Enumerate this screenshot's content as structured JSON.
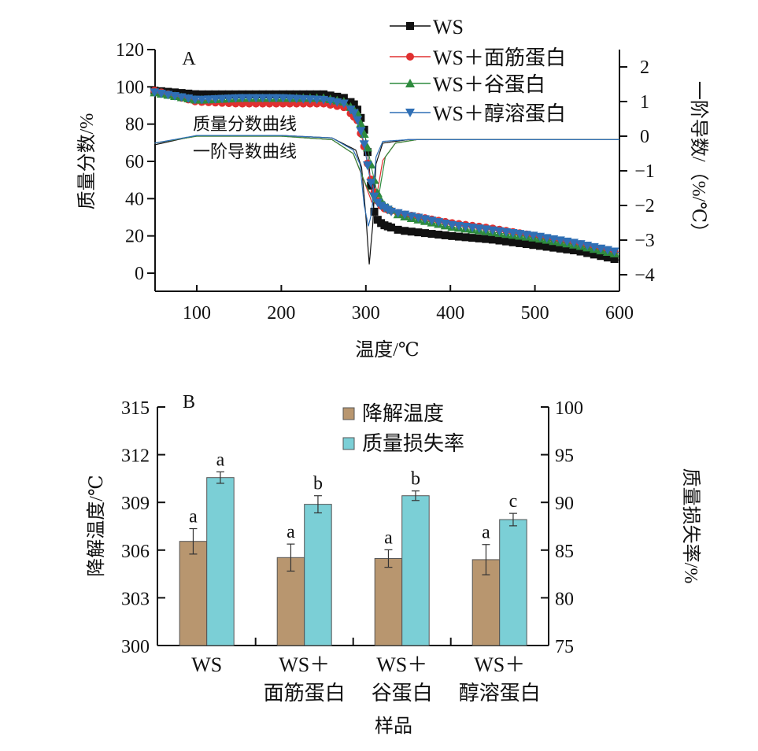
{
  "chart_data": [
    {
      "type": "line",
      "panel_label": "A",
      "xlabel": "温度/℃",
      "ylabel": "质量分数/%",
      "y2label": "一阶导数/（%/℃）",
      "xlim": [
        50,
        600
      ],
      "ylim": [
        -8,
        120
      ],
      "y2lim": [
        -4.5,
        2.5
      ],
      "xticks": [
        100,
        200,
        300,
        400,
        500,
        600
      ],
      "yticks": [
        0,
        20,
        40,
        60,
        80,
        100,
        120
      ],
      "y2ticks": [
        -4,
        -3,
        -2,
        -1,
        0,
        1,
        2
      ],
      "annotations": [
        "质量分数曲线",
        "一阶导数曲线"
      ],
      "series": [
        {
          "name": "WS",
          "color": "#111111",
          "marker": "square",
          "tg": [
            [
              50,
              98
            ],
            [
              100,
              96
            ],
            [
              150,
              96
            ],
            [
              200,
              96
            ],
            [
              250,
              96
            ],
            [
              275,
              94
            ],
            [
              288,
              90
            ],
            [
              297,
              80
            ],
            [
              303,
              62
            ],
            [
              307,
              42
            ],
            [
              311,
              30
            ],
            [
              320,
              26
            ],
            [
              340,
              23
            ],
            [
              400,
              20
            ],
            [
              450,
              18
            ],
            [
              500,
              15
            ],
            [
              550,
              12
            ],
            [
              600,
              7
            ]
          ],
          "dtg": [
            [
              50,
              -0.25
            ],
            [
              100,
              0.02
            ],
            [
              200,
              0.02
            ],
            [
              260,
              -0.05
            ],
            [
              280,
              -0.3
            ],
            [
              288,
              -0.4
            ],
            [
              295,
              -0.9
            ],
            [
              300,
              -2.3
            ],
            [
              304,
              -3.7
            ],
            [
              308,
              -2.6
            ],
            [
              312,
              -0.8
            ],
            [
              320,
              -0.2
            ],
            [
              350,
              -0.1
            ],
            [
              600,
              -0.1
            ]
          ]
        },
        {
          "name": "WS＋面筋蛋白",
          "color": "#e03030",
          "marker": "circle",
          "tg": [
            [
              50,
              98
            ],
            [
              100,
              92
            ],
            [
              150,
              91
            ],
            [
              200,
              91
            ],
            [
              250,
              91
            ],
            [
              275,
              89
            ],
            [
              290,
              82
            ],
            [
              298,
              68
            ],
            [
              305,
              52
            ],
            [
              312,
              40
            ],
            [
              320,
              35
            ],
            [
              340,
              32
            ],
            [
              400,
              27
            ],
            [
              450,
              24
            ],
            [
              500,
              20
            ],
            [
              550,
              16
            ],
            [
              600,
              11
            ]
          ],
          "dtg": [
            [
              50,
              -0.2
            ],
            [
              100,
              0.0
            ],
            [
              200,
              0.0
            ],
            [
              260,
              -0.1
            ],
            [
              285,
              -0.5
            ],
            [
              298,
              -1.3
            ],
            [
              307,
              -1.9
            ],
            [
              313,
              -1.7
            ],
            [
              320,
              -0.7
            ],
            [
              335,
              -0.2
            ],
            [
              360,
              -0.1
            ],
            [
              600,
              -0.1
            ]
          ]
        },
        {
          "name": "WS＋谷蛋白",
          "color": "#2e8b3e",
          "marker": "triangle-up",
          "tg": [
            [
              50,
              97
            ],
            [
              100,
              93
            ],
            [
              150,
              94
            ],
            [
              200,
              94
            ],
            [
              250,
              94
            ],
            [
              275,
              92
            ],
            [
              290,
              86
            ],
            [
              300,
              72
            ],
            [
              307,
              56
            ],
            [
              313,
              44
            ],
            [
              320,
              37
            ],
            [
              340,
              31
            ],
            [
              400,
              25
            ],
            [
              450,
              22
            ],
            [
              500,
              19
            ],
            [
              550,
              15
            ],
            [
              600,
              10
            ]
          ],
          "dtg": [
            [
              50,
              -0.2
            ],
            [
              100,
              0.0
            ],
            [
              200,
              0.0
            ],
            [
              260,
              -0.1
            ],
            [
              285,
              -0.5
            ],
            [
              300,
              -1.4
            ],
            [
              310,
              -1.9
            ],
            [
              316,
              -1.6
            ],
            [
              323,
              -0.6
            ],
            [
              335,
              -0.2
            ],
            [
              360,
              -0.1
            ],
            [
              600,
              -0.1
            ]
          ]
        },
        {
          "name": "WS＋醇溶蛋白",
          "color": "#2f6fb5",
          "marker": "triangle-down",
          "tg": [
            [
              50,
              97
            ],
            [
              100,
              93
            ],
            [
              150,
              94
            ],
            [
              200,
              94
            ],
            [
              250,
              93
            ],
            [
              275,
              91
            ],
            [
              288,
              85
            ],
            [
              297,
              72
            ],
            [
              303,
              55
            ],
            [
              309,
              42
            ],
            [
              315,
              37
            ],
            [
              330,
              33
            ],
            [
              400,
              26
            ],
            [
              450,
              23
            ],
            [
              500,
              20
            ],
            [
              550,
              16
            ],
            [
              600,
              11
            ]
          ],
          "dtg": [
            [
              50,
              -0.2
            ],
            [
              100,
              0.02
            ],
            [
              200,
              0.02
            ],
            [
              260,
              -0.05
            ],
            [
              285,
              -0.4
            ],
            [
              293,
              -0.8
            ],
            [
              298,
              -2.0
            ],
            [
              303,
              -2.6
            ],
            [
              307,
              -2.2
            ],
            [
              312,
              -0.6
            ],
            [
              320,
              -0.15
            ],
            [
              350,
              -0.1
            ],
            [
              600,
              -0.1
            ]
          ]
        }
      ]
    },
    {
      "type": "bar",
      "panel_label": "B",
      "xlabel": "样品",
      "ylabel": "降解温度/℃",
      "y2label": "质量损失率/%",
      "categories": [
        [
          "WS"
        ],
        [
          "WS＋",
          "面筋蛋白"
        ],
        [
          "WS＋",
          "谷蛋白"
        ],
        [
          "WS＋",
          "醇溶蛋白"
        ]
      ],
      "ylim": [
        300,
        315
      ],
      "y2lim": [
        75,
        100
      ],
      "yticks": [
        300,
        303,
        306,
        309,
        312,
        315
      ],
      "y2ticks": [
        75,
        80,
        85,
        90,
        95,
        100
      ],
      "series": [
        {
          "name": "降解温度",
          "color": "#b8966f",
          "axis": "left",
          "values": [
            306.55,
            305.53,
            305.47,
            305.4
          ],
          "errors": [
            0.8,
            0.85,
            0.55,
            0.95
          ],
          "labels": [
            "a",
            "a",
            "a",
            "a"
          ]
        },
        {
          "name": "质量损失率",
          "color": "#7bcfd6",
          "axis": "right",
          "values": [
            92.6,
            89.8,
            90.7,
            88.2
          ],
          "errors": [
            0.6,
            0.9,
            0.5,
            0.65
          ],
          "labels": [
            "a",
            "b",
            "b",
            "c"
          ]
        }
      ]
    }
  ]
}
